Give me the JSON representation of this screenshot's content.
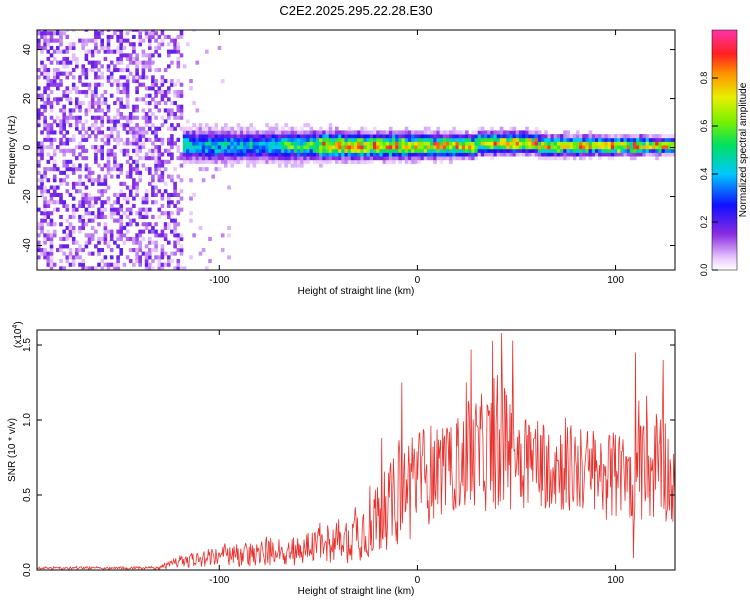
{
  "chart_data": [
    {
      "type": "heatmap",
      "title": "C2E2.2025.295.22.28.E30",
      "xlabel": "Height of straight line (km)",
      "ylabel": "Frequency (Hz)",
      "xlim": [
        -192,
        130
      ],
      "ylim": [
        -50,
        48
      ],
      "xticks": [
        -100,
        0,
        100
      ],
      "yticks": [
        40,
        20,
        0,
        -20,
        -40
      ],
      "ytick_labels": [
        "40",
        "20",
        "0",
        "-20",
        "-40"
      ],
      "colorbar": {
        "label": "Normalized spectral amplitude",
        "range": [
          0,
          1
        ],
        "ticks": [
          0.0,
          0.2,
          0.4,
          0.6,
          0.8
        ],
        "tick_labels": [
          "0.0",
          "0.2",
          "0.4",
          "0.6",
          "0.8"
        ]
      },
      "features": {
        "noise_region_x": [
          -192,
          -120
        ],
        "band_start_x": -120,
        "band_center_hz": 0,
        "band_halfwidth_hz_start": 6,
        "band_halfwidth_hz_end": 3,
        "peak_amplitude_from_x": -50
      }
    },
    {
      "type": "line",
      "xlabel": "Height of straight line (km)",
      "ylabel": "SNR (10 * v/v)",
      "scale_label": "(x10^4)",
      "xlim": [
        -192,
        130
      ],
      "ylim": [
        0,
        1.6
      ],
      "xticks": [
        -100,
        0,
        100
      ],
      "yticks": [
        0.0,
        0.5,
        1.0,
        1.5
      ],
      "ytick_labels": [
        "0.0",
        "0.5",
        "1.0",
        "1.5"
      ],
      "color": "#e8322e",
      "series": [
        {
          "name": "SNR",
          "envelope": [
            {
              "x": -192,
              "base": 0.01,
              "amp": 0.015
            },
            {
              "x": -130,
              "base": 0.01,
              "amp": 0.02
            },
            {
              "x": -120,
              "base": 0.04,
              "amp": 0.08
            },
            {
              "x": -100,
              "base": 0.06,
              "amp": 0.14
            },
            {
              "x": -80,
              "base": 0.07,
              "amp": 0.18
            },
            {
              "x": -60,
              "base": 0.09,
              "amp": 0.22
            },
            {
              "x": -45,
              "base": 0.13,
              "amp": 0.28
            },
            {
              "x": -35,
              "base": 0.14,
              "amp": 0.32
            },
            {
              "x": -25,
              "base": 0.2,
              "amp": 0.45
            },
            {
              "x": -15,
              "base": 0.3,
              "amp": 0.55
            },
            {
              "x": -5,
              "base": 0.4,
              "amp": 0.75
            },
            {
              "x": 5,
              "base": 0.5,
              "amp": 0.7
            },
            {
              "x": 15,
              "base": 0.55,
              "amp": 0.55
            },
            {
              "x": 25,
              "base": 0.6,
              "amp": 0.75
            },
            {
              "x": 42,
              "base": 0.65,
              "amp": 0.85
            },
            {
              "x": 60,
              "base": 0.6,
              "amp": 0.65
            },
            {
              "x": 80,
              "base": 0.55,
              "amp": 0.6
            },
            {
              "x": 100,
              "base": 0.5,
              "amp": 0.6
            },
            {
              "x": 110,
              "base": 0.5,
              "amp": 0.65
            },
            {
              "x": 125,
              "base": 0.55,
              "amp": 0.75
            },
            {
              "x": 130,
              "base": 0.4,
              "amp": 0.5
            }
          ],
          "peaks": [
            {
              "x": 42.5,
              "y": 1.58
            },
            {
              "x": 48,
              "y": 1.53
            },
            {
              "x": 27,
              "y": 1.47
            },
            {
              "x": 110,
              "y": 1.45
            },
            {
              "x": 124,
              "y": 1.4
            },
            {
              "x": -8,
              "y": 1.25
            },
            {
              "x": -18,
              "y": 0.88
            },
            {
              "x": 109,
              "y": 0.08
            }
          ]
        }
      ]
    }
  ]
}
